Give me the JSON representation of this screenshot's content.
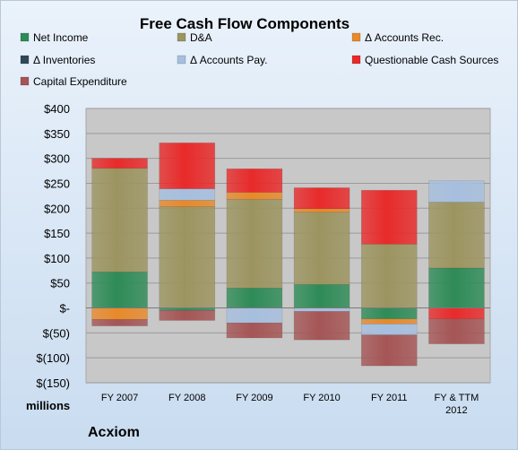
{
  "chart_data": {
    "type": "bar",
    "stacked": true,
    "title": "Free Cash Flow Components",
    "company": "Acxiom",
    "units_label": "millions",
    "categories": [
      "FY 2007",
      "FY 2008",
      "FY 2009",
      "FY 2010",
      "FY 2011",
      "FY & TTM 2012"
    ],
    "ylim": [
      -150,
      400
    ],
    "yticks": [
      400,
      350,
      300,
      250,
      200,
      150,
      100,
      50,
      0,
      -50,
      -100,
      -150
    ],
    "ytick_labels": [
      "$400",
      "$350",
      "$300",
      "$250",
      "$200",
      "$150",
      "$100",
      "$50",
      "$-",
      "$(50)",
      "$(100)",
      "$(150)"
    ],
    "grid": true,
    "legend_position": "top",
    "series": [
      {
        "name": "Net Income",
        "color": "#2e8b57",
        "values": [
          72,
          -5,
          40,
          47,
          -22,
          80
        ]
      },
      {
        "name": "D&A",
        "color": "#9c9460",
        "values": [
          208,
          203,
          178,
          145,
          128,
          132
        ]
      },
      {
        "name": "Δ Accounts Rec.",
        "color": "#e8892a",
        "values": [
          -23,
          13,
          14,
          7,
          -10,
          0
        ]
      },
      {
        "name": "Δ Inventories",
        "color": "#2f4858",
        "values": [
          0,
          0,
          0,
          0,
          0,
          0
        ]
      },
      {
        "name": "Δ Accounts Pay.",
        "color": "#a6bfde",
        "values": [
          0,
          23,
          -30,
          -7,
          -22,
          43
        ]
      },
      {
        "name": "Questionable Cash Sources",
        "color": "#e82a2a",
        "values": [
          20,
          92,
          47,
          42,
          108,
          -22
        ]
      },
      {
        "name": "Capital Expenditure",
        "color": "#a55555",
        "values": [
          -13,
          -20,
          -30,
          -57,
          -62,
          -50
        ]
      }
    ]
  }
}
